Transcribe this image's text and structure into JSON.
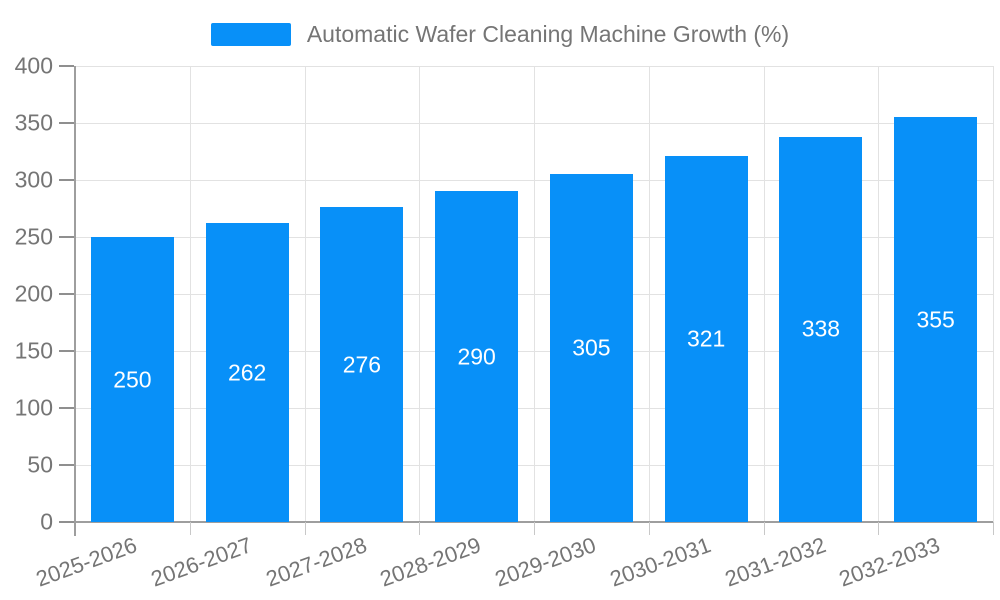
{
  "legend": {
    "label": "Automatic Wafer Cleaning Machine Growth (%)"
  },
  "chart_data": {
    "type": "bar",
    "title": "Automatic Wafer Cleaning Machine Growth (%)",
    "categories": [
      "2025-2026",
      "2026-2027",
      "2027-2028",
      "2028-2029",
      "2029-2030",
      "2030-2031",
      "2031-2032",
      "2032-2033"
    ],
    "values": [
      250,
      262,
      276,
      290,
      305,
      321,
      338,
      355
    ],
    "xlabel": "",
    "ylabel": "",
    "ylim": [
      0,
      400
    ],
    "ytick_step": 50,
    "yticks": [
      0,
      50,
      100,
      150,
      200,
      250,
      300,
      350,
      400
    ],
    "grid": true,
    "legend_position": "top-center",
    "x_label_rotation_deg": -20,
    "value_labels": "inside-center",
    "colors": {
      "bar": "#0890f8",
      "bar_value_text": "#ffffff",
      "axis_text": "#757575",
      "grid_line": "#e2e2e2",
      "axis_line": "#9e9e9e",
      "tick_line": "#c8c8c8",
      "background": "#ffffff"
    }
  }
}
